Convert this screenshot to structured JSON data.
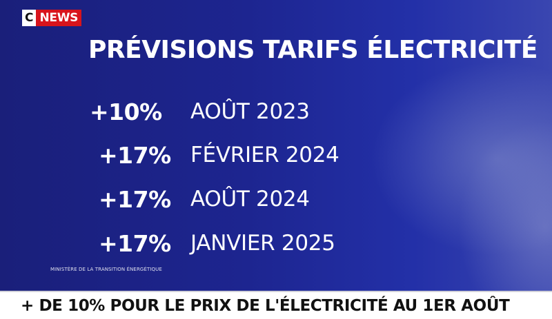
{
  "logo": {
    "c": "C",
    "news": "NEWS"
  },
  "title": "PRÉVISIONS TARIFS ÉLECTRICITÉ",
  "forecasts": [
    {
      "increase": "+10%",
      "date": "AOÛT 2023"
    },
    {
      "increase": "+17%",
      "date": "FÉVRIER 2024"
    },
    {
      "increase": "+17%",
      "date": "AOÛT 2024"
    },
    {
      "increase": "+17%",
      "date": "JANVIER 2025"
    }
  ],
  "source": "MINISTÈRE DE LA TRANSITION ÉNERGÉTIQUE",
  "ticker": "+ DE 10% POUR LE PRIX DE L'ÉLECTRICITÉ AU 1ER AOÛT",
  "colors": {
    "background": "#1d2590",
    "brand_red": "#d8141c",
    "text": "#ffffff",
    "ticker_bg": "#ffffff",
    "ticker_text": "#111111"
  }
}
